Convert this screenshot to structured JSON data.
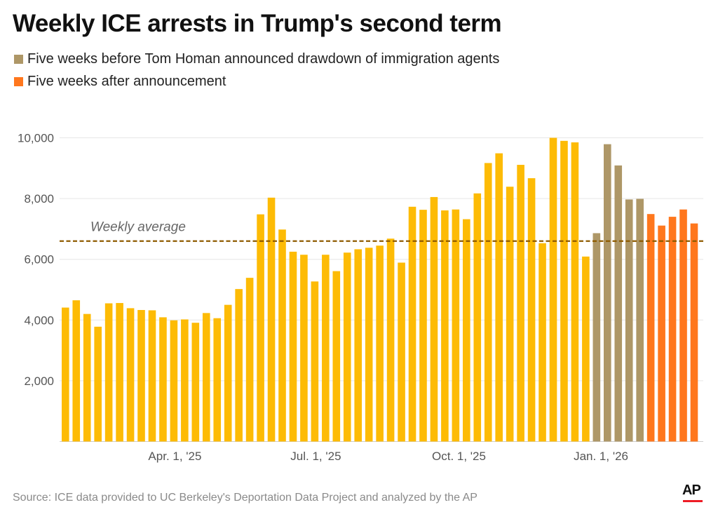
{
  "title": "Weekly ICE arrests in Trump's second term",
  "legend": [
    {
      "label": "Five weeks before Tom Homan announced drawdown of immigration agents",
      "color": "#AE9767"
    },
    {
      "label": "Five weeks after announcement",
      "color": "#FF771D"
    }
  ],
  "source": "Source: ICE data provided to UC Berkeley's Deportation Data Project and analyzed by the AP",
  "logo": "AP",
  "chart_data": {
    "type": "bar",
    "title": "Weekly ICE arrests in Trump's second term",
    "xlabel": "",
    "ylabel": "",
    "ylim": [
      0,
      10000
    ],
    "y_ticks": [
      "2,000",
      "4,000",
      "6,000",
      "8,000",
      "10,000"
    ],
    "y_tick_values": [
      2000,
      4000,
      6000,
      8000,
      10000
    ],
    "x_ticks": [
      "Apr. 1, '25",
      "Jul. 1, '25",
      "Oct. 1, '25",
      "Jan. 1, '26"
    ],
    "grid": true,
    "legend_position": "top-left",
    "colors": {
      "default": "#FDBB05",
      "before": "#AE9767",
      "after": "#FF771D",
      "average": "#8F5B00",
      "grid": "#E6E6E6"
    },
    "average": {
      "label": "Weekly average",
      "value": 6600
    },
    "values": [
      4410,
      4650,
      4200,
      3780,
      4550,
      4560,
      4390,
      4330,
      4320,
      4090,
      3990,
      4020,
      3910,
      4230,
      4060,
      4500,
      5020,
      5390,
      7480,
      8030,
      6980,
      6250,
      6150,
      5270,
      6150,
      5610,
      6220,
      6330,
      6380,
      6450,
      6680,
      5890,
      7730,
      7630,
      8050,
      7610,
      7640,
      7320,
      8170,
      9170,
      9490,
      8390,
      9110,
      8670,
      6530,
      10000,
      9900,
      9850,
      6090,
      6860,
      9790,
      9090,
      7970,
      7990,
      7490,
      7110,
      7400,
      7640,
      7180
    ],
    "groups": [
      "default",
      "default",
      "default",
      "default",
      "default",
      "default",
      "default",
      "default",
      "default",
      "default",
      "default",
      "default",
      "default",
      "default",
      "default",
      "default",
      "default",
      "default",
      "default",
      "default",
      "default",
      "default",
      "default",
      "default",
      "default",
      "default",
      "default",
      "default",
      "default",
      "default",
      "default",
      "default",
      "default",
      "default",
      "default",
      "default",
      "default",
      "default",
      "default",
      "default",
      "default",
      "default",
      "default",
      "default",
      "default",
      "default",
      "default",
      "default",
      "default",
      "before",
      "before",
      "before",
      "before",
      "before",
      "after",
      "after",
      "after",
      "after",
      "after"
    ]
  }
}
